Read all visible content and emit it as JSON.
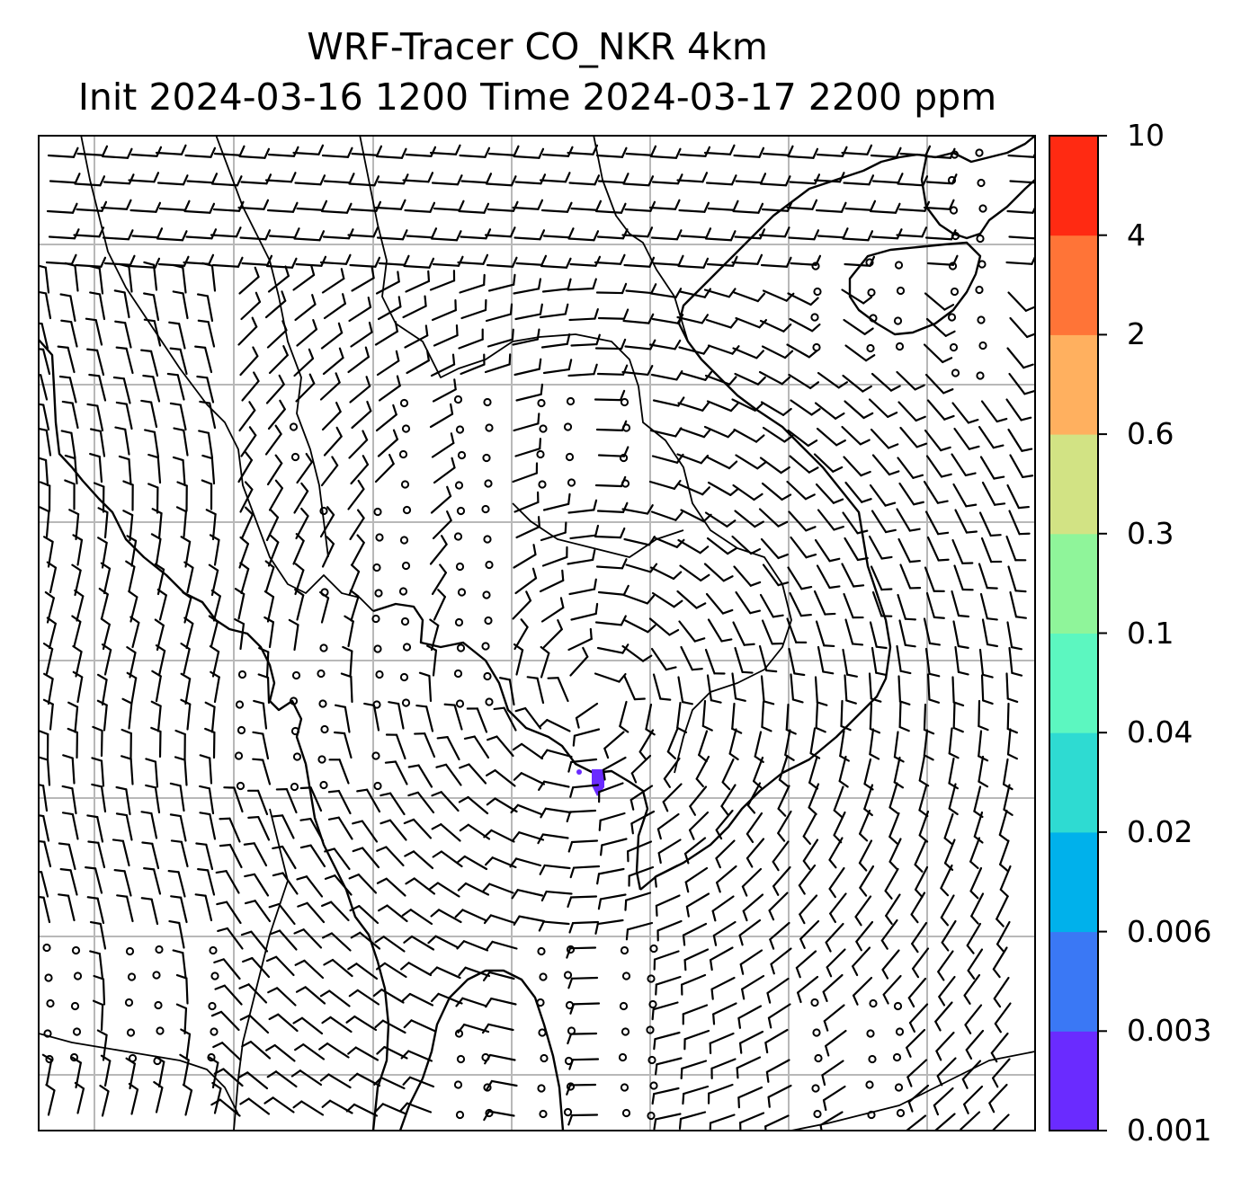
{
  "title": {
    "line1": "WRF-Tracer CO_NKR 4km",
    "line2": "Init 2024-03-16 1200 Time 2024-03-17 2200 ppm"
  },
  "colorbar": {
    "levels": [
      "0.001",
      "0.003",
      "0.006",
      "0.02",
      "0.04",
      "0.1",
      "0.3",
      "0.6",
      "2",
      "4",
      "10"
    ],
    "colors": [
      "#6a2bff",
      "#3a78f5",
      "#00b1eb",
      "#2edbd2",
      "#5cf7c0",
      "#8ff59a",
      "#d2e384",
      "#ffb05f",
      "#ff7437",
      "#ff2a12"
    ]
  },
  "map": {
    "plume_color": "#6a2bff",
    "barb_color": "#000000",
    "gridline_color": "#b8b8b8",
    "coastline_color": "#000000"
  }
}
